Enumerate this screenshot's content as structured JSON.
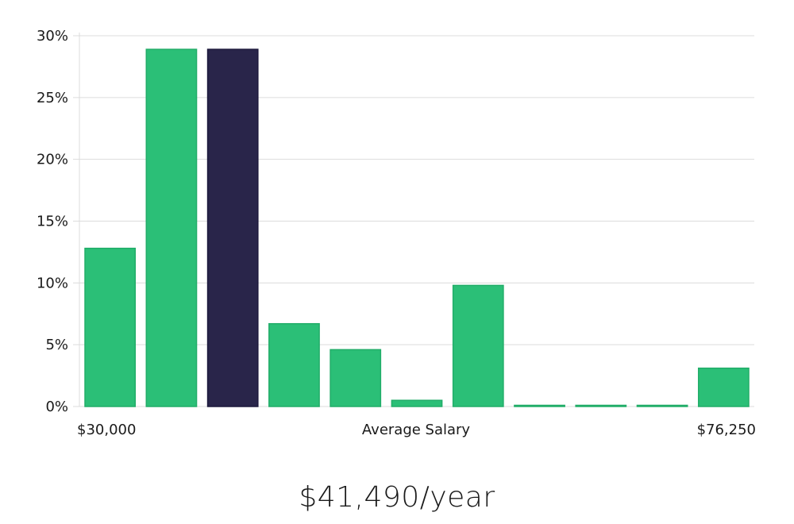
{
  "chart_data": {
    "type": "bar",
    "xlabel": "Average Salary",
    "x_range_labels": [
      "$30,000",
      "$76,250"
    ],
    "ylim": [
      0,
      30
    ],
    "yticks": [
      "0%",
      "5%",
      "10%",
      "15%",
      "20%",
      "25%",
      "30%"
    ],
    "values": [
      12.8,
      28.9,
      28.9,
      6.7,
      4.6,
      0.5,
      9.8,
      0,
      0,
      0,
      3.1
    ],
    "highlight_index": 2,
    "grid": true,
    "colors": {
      "bar": "#2bbf77",
      "highlight": "#29254a",
      "grid": "#dcdcdc",
      "axis": "#bbbbbb"
    }
  },
  "salary_display": "$41,490/year"
}
